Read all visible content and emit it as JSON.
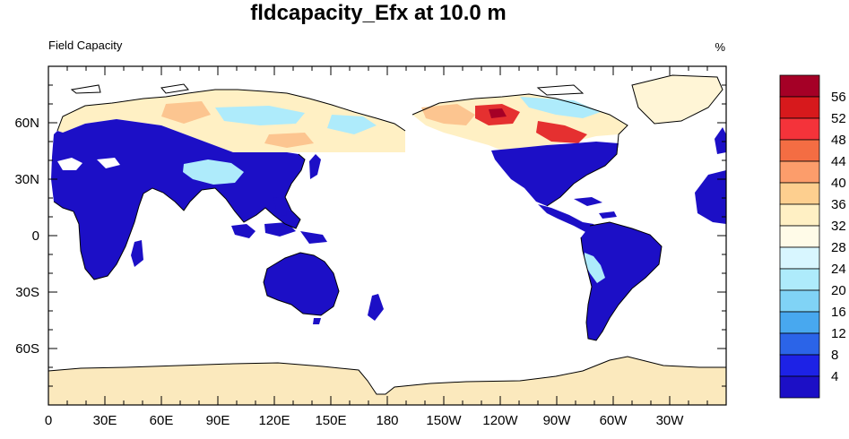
{
  "title": "fldcapacity_Efx at 10.0 m",
  "left_label": "Field Capacity",
  "right_label": "%",
  "x_ticks": [
    "0",
    "30E",
    "60E",
    "90E",
    "120E",
    "150E",
    "180",
    "150W",
    "120W",
    "90W",
    "60W",
    "30W"
  ],
  "y_ticks": [
    "60N",
    "30N",
    "0",
    "30S",
    "60S"
  ],
  "colorbar": {
    "labels": [
      "56",
      "52",
      "48",
      "44",
      "40",
      "36",
      "32",
      "28",
      "24",
      "20",
      "16",
      "12",
      "8",
      "4"
    ],
    "colors": [
      "#a50026",
      "#d7191c",
      "#f4333a",
      "#f46d43",
      "#fc9d6b",
      "#fdcf8f",
      "#fff0c4",
      "#fffbe8",
      "#d8f6ff",
      "#aeebfb",
      "#80d3f6",
      "#48a8ef",
      "#2b64e8",
      "#1d22e6",
      "#1c0fc6"
    ]
  },
  "colors": {
    "land_dry": "#1c0fc6",
    "antarctica": "#fbe9bd",
    "greenland": "#fff5d6",
    "tundra_light": "#fff0c4",
    "tundra_blue": "#aeebfb",
    "tundra_orange": "#fcc590",
    "hot_red": "#e53030",
    "dark_red": "#a50026"
  }
}
